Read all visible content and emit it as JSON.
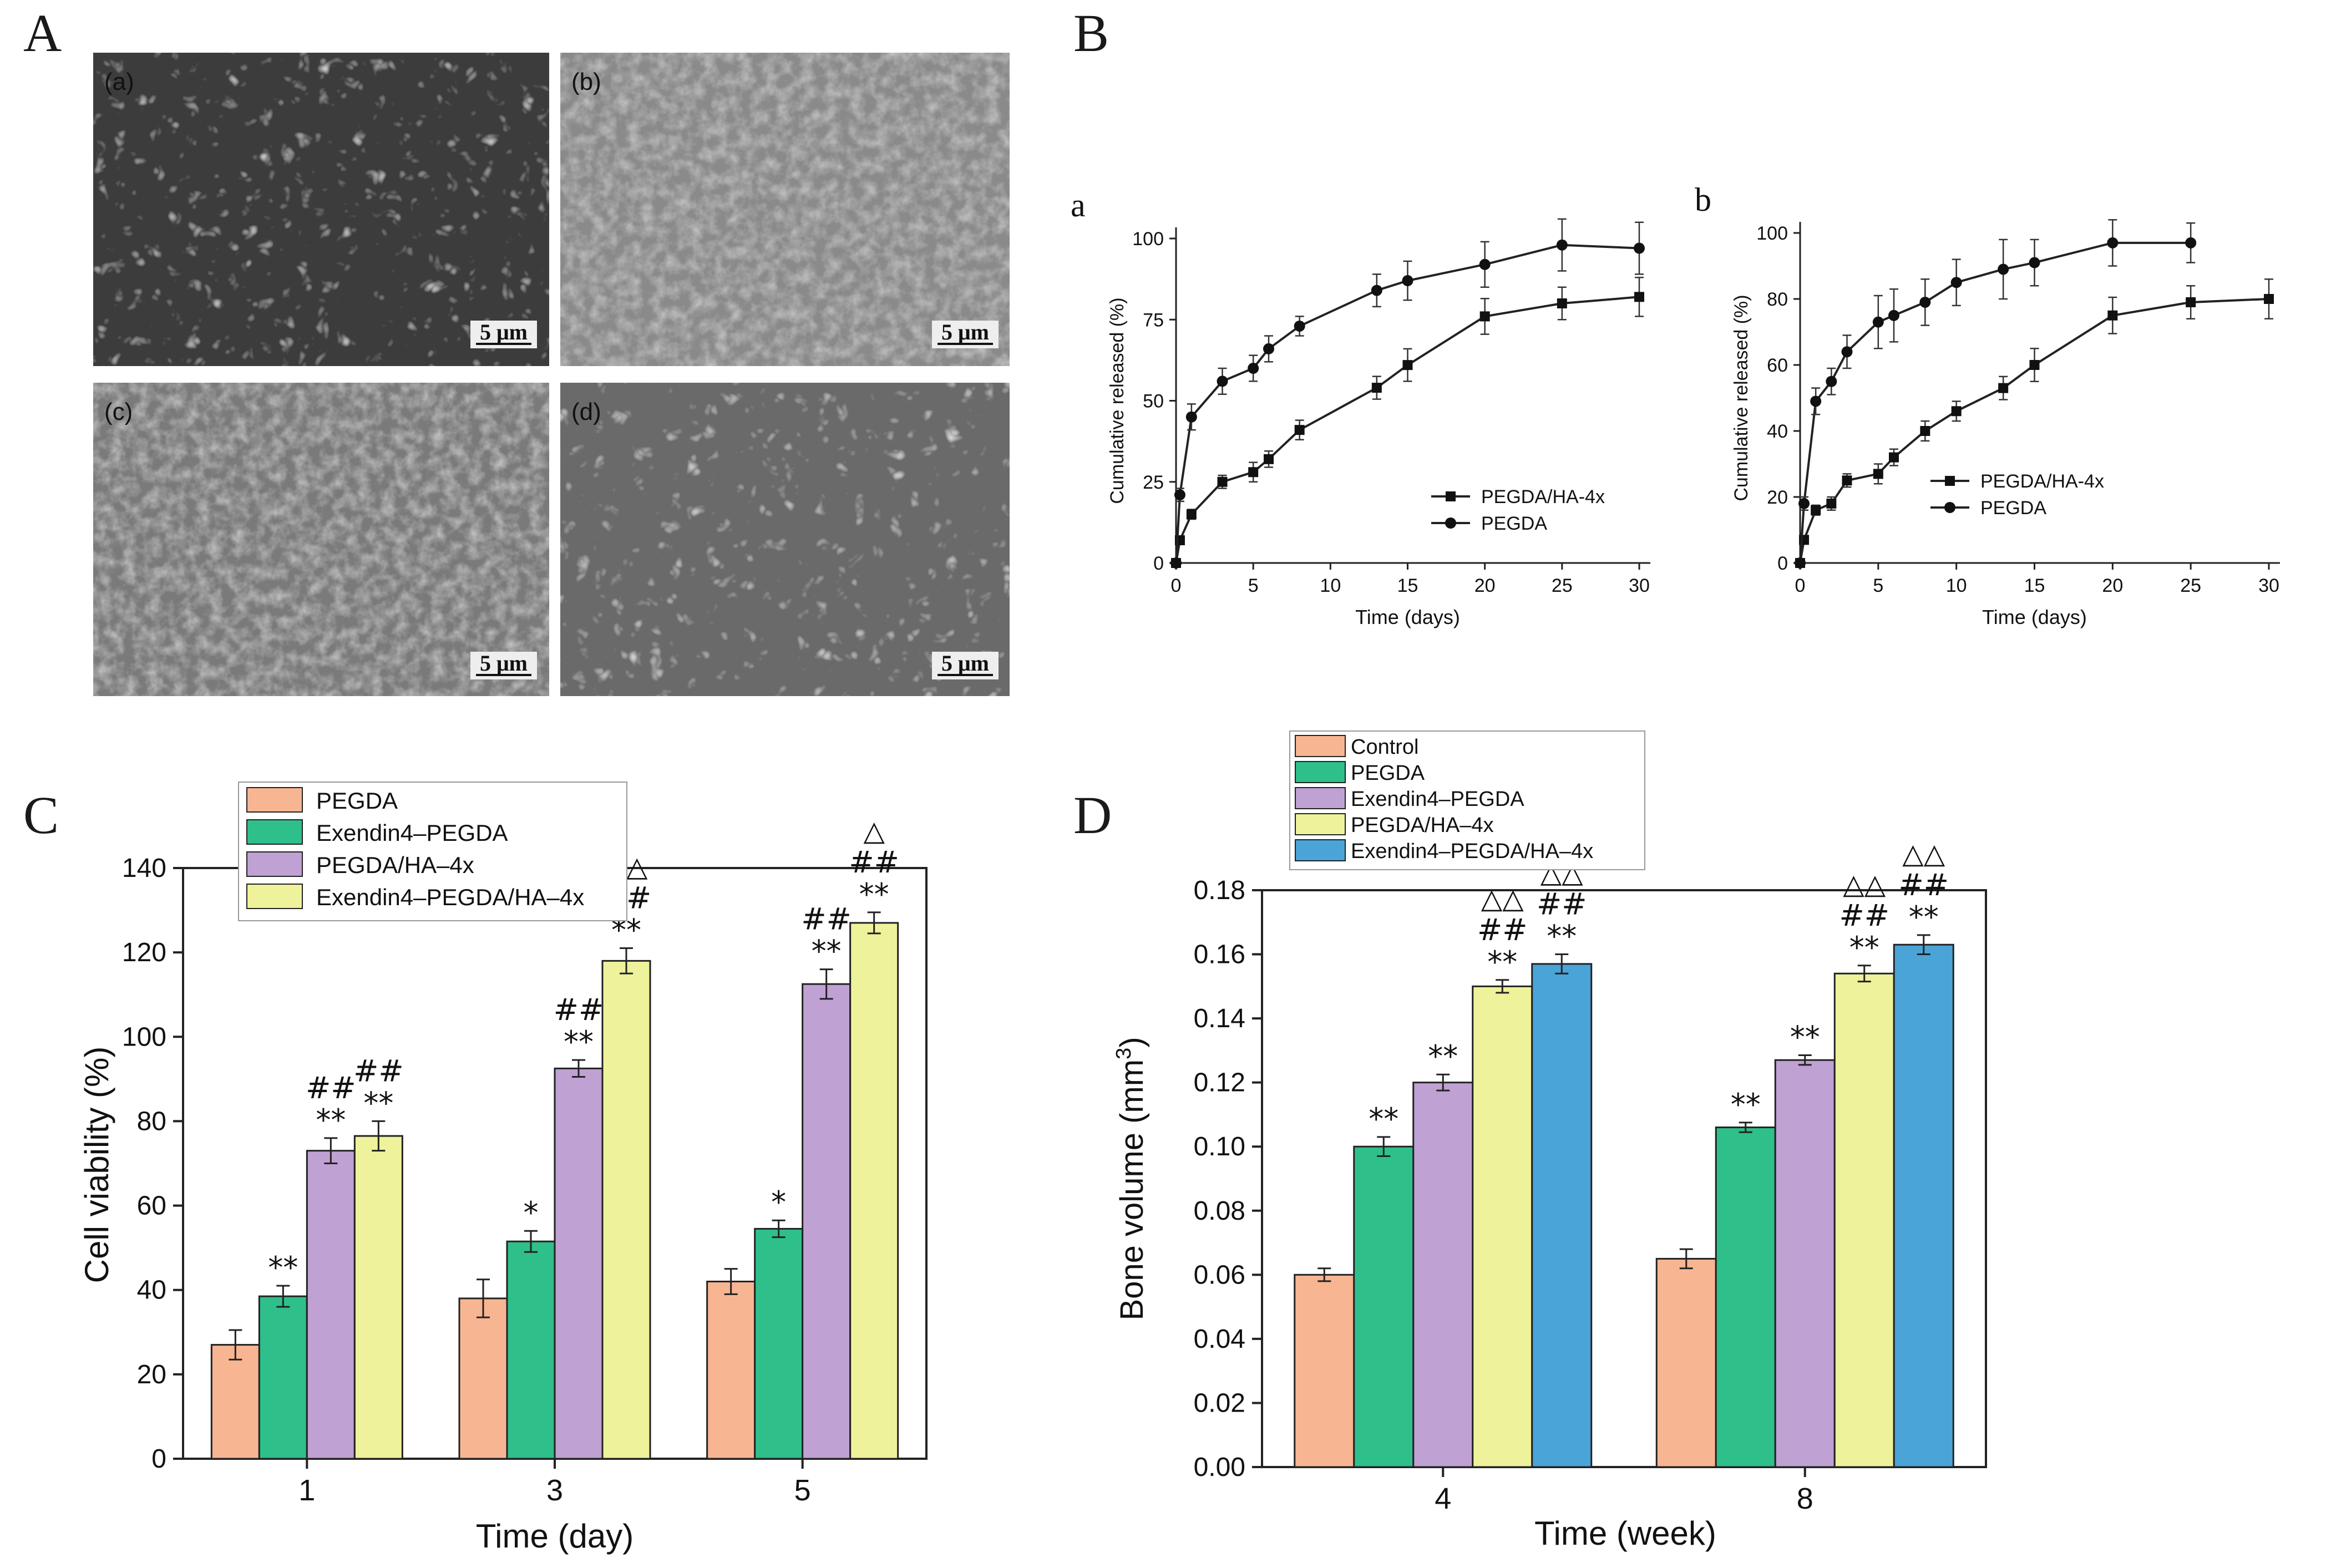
{
  "panel_labels": {
    "A": "A",
    "B": "B",
    "C": "C",
    "D": "D"
  },
  "sem_panels": [
    {
      "label": "(a)",
      "scale_bar": "5 μm"
    },
    {
      "label": "(b)",
      "scale_bar": "5 μm"
    },
    {
      "label": "(c)",
      "scale_bar": "5 μm"
    },
    {
      "label": "(d)",
      "scale_bar": "5 μm"
    }
  ],
  "colors": {
    "PEGDA": "#f8b592",
    "Exendin4-PEGDA": "#2fbf8a",
    "PEGDA/HA-4x": "#c0a1d4",
    "Exendin4-PEGDA/HA-4x": "#eef29a",
    "Control": "#f8b592",
    "PEGDA_D": "#2fbf8a",
    "Exendin4-PEGDA_D": "#c0a1d4",
    "PEGDA/HA-4x_D": "#eef29a",
    "Exendin4-PEGDA/HA-4x_D": "#4aa4d8"
  },
  "chart_data": [
    {
      "id": "Ba",
      "type": "line",
      "sub_label": "a",
      "xlabel": "Time (days)",
      "ylabel": "Cumulative released (%)",
      "xlim": [
        0,
        30
      ],
      "ylim": [
        0,
        100
      ],
      "xticks": [
        0,
        5,
        10,
        15,
        20,
        25,
        30
      ],
      "yticks": [
        0,
        25,
        50,
        75,
        100
      ],
      "legend": [
        "PEGDA/HA-4x",
        "PEGDA"
      ],
      "series": [
        {
          "name": "PEGDA/HA-4x",
          "marker": "square",
          "x": [
            0,
            0.25,
            1,
            3,
            5,
            6,
            8,
            13,
            15,
            20,
            25,
            30
          ],
          "y": [
            0,
            7,
            15,
            25,
            28,
            32,
            41,
            54,
            61,
            76,
            80,
            82
          ],
          "err": [
            1,
            1,
            1.5,
            2,
            3,
            2.5,
            3,
            3.5,
            5,
            5.5,
            5,
            6
          ]
        },
        {
          "name": "PEGDA",
          "marker": "circle",
          "x": [
            0,
            0.25,
            1,
            3,
            5,
            6,
            8,
            13,
            15,
            20,
            25,
            30
          ],
          "y": [
            0,
            21,
            45,
            56,
            60,
            66,
            73,
            84,
            87,
            92,
            98,
            97
          ],
          "err": [
            1,
            2,
            4,
            4,
            4,
            4,
            3,
            5,
            6,
            7,
            8,
            8
          ]
        }
      ]
    },
    {
      "id": "Bb",
      "type": "line",
      "sub_label": "b",
      "xlabel": "Time (days)",
      "ylabel": "Cumulative released (%)",
      "xlim": [
        0,
        30
      ],
      "ylim": [
        0,
        100
      ],
      "xticks": [
        0,
        5,
        10,
        15,
        20,
        25,
        30
      ],
      "yticks": [
        0,
        20,
        40,
        60,
        80,
        100
      ],
      "legend": [
        "PEGDA/HA-4x",
        "PEGDA"
      ],
      "series": [
        {
          "name": "PEGDA/HA-4x",
          "marker": "square",
          "x": [
            0,
            0.25,
            1,
            2,
            3,
            5,
            6,
            8,
            10,
            13,
            15,
            20,
            25,
            30
          ],
          "y": [
            0,
            7,
            16,
            18,
            25,
            27,
            32,
            40,
            46,
            53,
            60,
            75,
            79,
            80
          ],
          "err": [
            1,
            1,
            1.5,
            2,
            2,
            3,
            2.5,
            3,
            3,
            3.5,
            5,
            5.5,
            5,
            6
          ]
        },
        {
          "name": "PEGDA",
          "marker": "circle",
          "x": [
            0,
            0.25,
            1,
            2,
            3,
            5,
            6,
            8,
            10,
            13,
            15,
            20,
            25
          ],
          "y": [
            0,
            18,
            49,
            55,
            64,
            73,
            75,
            79,
            85,
            89,
            91,
            97,
            97
          ],
          "err": [
            1,
            2,
            4,
            4,
            5,
            8,
            8,
            7,
            7,
            9,
            7,
            7,
            6
          ]
        }
      ]
    },
    {
      "id": "C",
      "type": "bar",
      "xlabel": "Time (day)",
      "ylabel": "Cell viability (%)",
      "categories": [
        "1",
        "3",
        "5"
      ],
      "ylim": [
        0,
        140
      ],
      "yticks": [
        0,
        20,
        40,
        60,
        80,
        100,
        120,
        140
      ],
      "series": [
        {
          "name": "PEGDA",
          "values": [
            27,
            38,
            42
          ],
          "err": [
            3.5,
            4.5,
            3
          ]
        },
        {
          "name": "Exendin4–PEGDA",
          "values": [
            38.5,
            51.5,
            54.5
          ],
          "err": [
            2.5,
            2.5,
            2
          ]
        },
        {
          "name": "PEGDA/HA–4x",
          "values": [
            73,
            92.5,
            112.5
          ],
          "err": [
            3,
            2,
            3.5
          ]
        },
        {
          "name": "Exendin4–PEGDA/HA–4x",
          "values": [
            76.5,
            118,
            127
          ],
          "err": [
            3.5,
            3,
            2.5
          ]
        }
      ],
      "annotations": [
        [
          [],
          [
            "**"
          ],
          [
            "**",
            "##"
          ],
          [
            "**",
            "##"
          ]
        ],
        [
          [],
          [
            "*"
          ],
          [
            "**",
            "##"
          ],
          [
            "**",
            "##",
            "△△"
          ]
        ],
        [
          [],
          [
            "*"
          ],
          [
            "**",
            "##"
          ],
          [
            "**",
            "##",
            "△"
          ]
        ]
      ]
    },
    {
      "id": "D",
      "type": "bar",
      "xlabel": "Time (week)",
      "ylabel": "Bone volume (mm",
      "ylabel_sup": "3",
      "ylabel_end": ")",
      "categories": [
        "4",
        "8"
      ],
      "ylim": [
        0,
        0.18
      ],
      "yticks": [
        "0.00",
        "0.02",
        "0.04",
        "0.06",
        "0.08",
        "0.10",
        "0.12",
        "0.14",
        "0.16",
        "0.18"
      ],
      "series": [
        {
          "name": "Control",
          "values": [
            0.06,
            0.065
          ],
          "err": [
            0.002,
            0.003
          ]
        },
        {
          "name": "PEGDA",
          "values": [
            0.1,
            0.106
          ],
          "err": [
            0.003,
            0.0015
          ]
        },
        {
          "name": "Exendin4–PEGDA",
          "values": [
            0.12,
            0.127
          ],
          "err": [
            0.0025,
            0.0015
          ]
        },
        {
          "name": "PEGDA/HA–4x",
          "values": [
            0.15,
            0.154
          ],
          "err": [
            0.002,
            0.0025
          ]
        },
        {
          "name": "Exendin4–PEGDA/HA–4x",
          "values": [
            0.157,
            0.163
          ],
          "err": [
            0.003,
            0.003
          ]
        }
      ],
      "annotations": [
        [
          [],
          [
            "**"
          ],
          [
            "**"
          ],
          [
            "**",
            "##",
            "△△"
          ],
          [
            "**",
            "##",
            "△△"
          ]
        ],
        [
          [],
          [
            "**"
          ],
          [
            "**"
          ],
          [
            "**",
            "##",
            "△△"
          ],
          [
            "**",
            "##",
            "△△"
          ]
        ]
      ]
    }
  ]
}
